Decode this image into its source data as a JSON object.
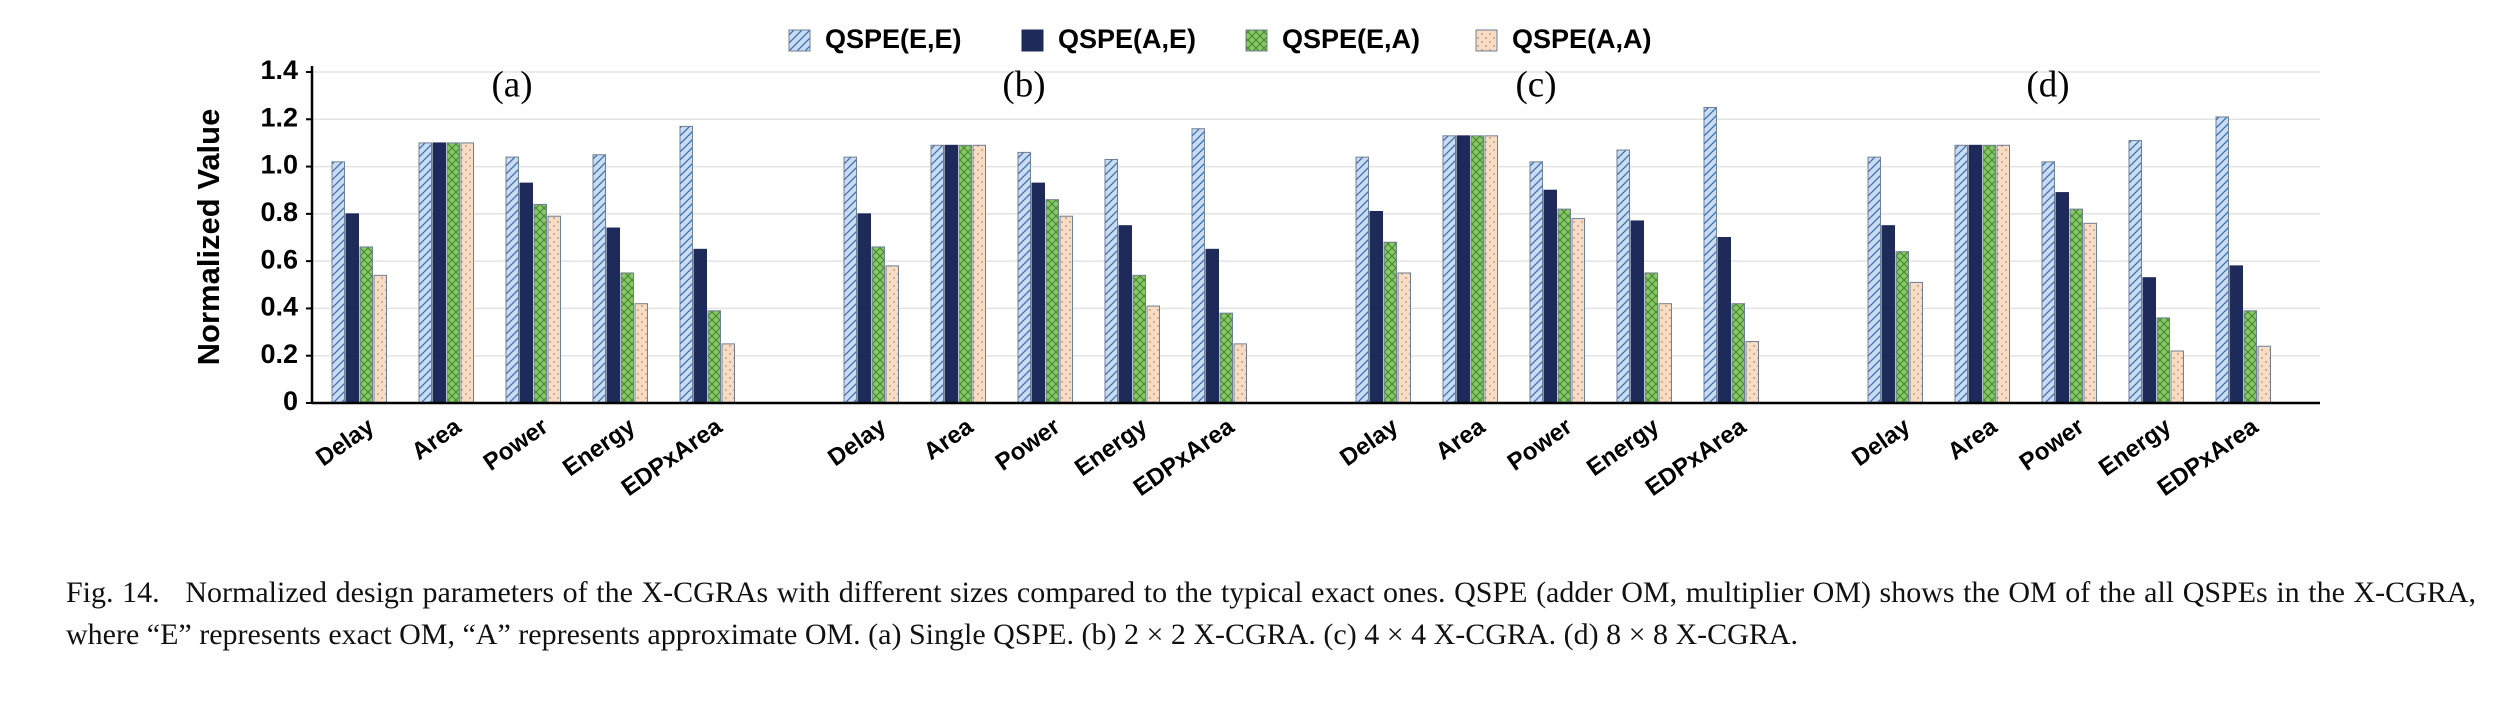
{
  "chart_data": {
    "type": "bar",
    "ylabel": "Normalized Value",
    "ylim": [
      0,
      1.4
    ],
    "yticks": [
      0,
      0.2,
      0.4,
      0.6,
      0.8,
      {
        "value": 1,
        "label": "1.0"
      },
      1.2,
      1.4
    ],
    "grid": true,
    "categories": [
      "Delay",
      "Area",
      "Power",
      "Energy",
      "EDPxArea"
    ],
    "groups": [
      "(a)",
      "(b)",
      "(c)",
      "(d)"
    ],
    "series": [
      {
        "name": "QSPE(E,E)",
        "color": "#c9dcf2",
        "values": [
          [
            1.02,
            1.1,
            1.04,
            1.05,
            1.17
          ],
          [
            1.04,
            1.09,
            1.06,
            1.03,
            1.16
          ],
          [
            1.04,
            1.13,
            1.02,
            1.07,
            1.25
          ],
          [
            1.04,
            1.09,
            1.02,
            1.11,
            1.21
          ]
        ]
      },
      {
        "name": "QSPE(A,E)",
        "color": "#1d2a5a",
        "values": [
          [
            0.8,
            1.1,
            0.93,
            0.74,
            0.65
          ],
          [
            0.8,
            1.09,
            0.93,
            0.75,
            0.65
          ],
          [
            0.81,
            1.13,
            0.9,
            0.77,
            0.7
          ],
          [
            0.75,
            1.09,
            0.89,
            0.53,
            0.58
          ]
        ]
      },
      {
        "name": "QSPE(E,A)",
        "color": "#8cc56a",
        "values": [
          [
            0.66,
            1.1,
            0.84,
            0.55,
            0.39
          ],
          [
            0.66,
            1.09,
            0.86,
            0.54,
            0.38
          ],
          [
            0.68,
            1.13,
            0.82,
            0.55,
            0.42
          ],
          [
            0.64,
            1.09,
            0.82,
            0.36,
            0.39
          ]
        ]
      },
      {
        "name": "QSPE(A,A)",
        "color": "#f7dcc6",
        "values": [
          [
            0.54,
            1.1,
            0.79,
            0.42,
            0.25
          ],
          [
            0.58,
            1.09,
            0.79,
            0.41,
            0.25
          ],
          [
            0.55,
            1.13,
            0.78,
            0.42,
            0.26
          ],
          [
            0.51,
            1.09,
            0.76,
            0.22,
            0.24
          ]
        ]
      }
    ]
  },
  "caption": "Fig. 14.   Normalized design parameters of the X-CGRAs with different sizes compared to the typical exact ones. QSPE (adder OM, multiplier OM) shows the OM of the all QSPEs in the X-CGRA, where “E” represents exact OM, “A” represents approximate OM. (a) Single QSPE. (b) 2 × 2 X-CGRA. (c) 4 × 4 X-CGRA. (d) 8 × 8 X-CGRA."
}
